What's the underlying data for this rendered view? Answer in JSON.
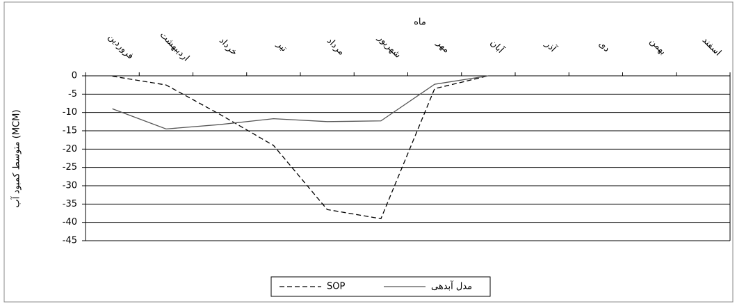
{
  "chart_data": {
    "type": "line",
    "x_label": "ماه",
    "y_label": "متوسط کمبود آب (MCM)",
    "categories": [
      "فروردین",
      "اردیبهشت",
      "خرداد",
      "تیر",
      "مرداد",
      "شهریور",
      "مهر",
      "آبان",
      "آذر",
      "دی",
      "بهمن",
      "اسفند"
    ],
    "series": [
      {
        "name": "SOP",
        "color": "#000000",
        "dash": true,
        "values": [
          -0.1,
          -2.5,
          -10.5,
          -19,
          -36.5,
          -39,
          -3.5,
          0,
          null,
          null,
          null,
          null
        ]
      },
      {
        "name": "مدل آبدهی",
        "color": "#555555",
        "dash": false,
        "values": [
          -9,
          -14.5,
          -13.3,
          -11.7,
          -12.5,
          -12.3,
          -2.3,
          0,
          null,
          null,
          null,
          null
        ]
      }
    ],
    "ylim": [
      -45,
      0
    ],
    "yticks": [
      0,
      -5,
      -10,
      -15,
      -20,
      -25,
      -30,
      -35,
      -40,
      -45
    ],
    "grid": true,
    "legend": "bottom"
  }
}
